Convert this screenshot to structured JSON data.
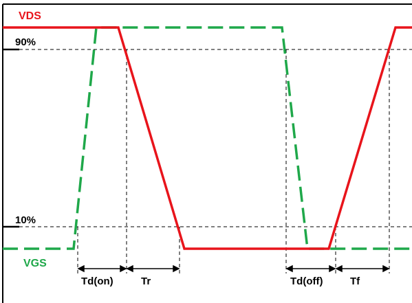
{
  "signals": {
    "vds": {
      "label": "VDS",
      "color": "#e8141b"
    },
    "vgs": {
      "label": "VGS",
      "color": "#1fa84a"
    }
  },
  "levels": {
    "high_pct": "90%",
    "low_pct": "10%"
  },
  "intervals": {
    "td_on": "Td(on)",
    "tr": "Tr",
    "td_off": "Td(off)",
    "tf": "Tf"
  },
  "colors": {
    "frame": "#000000",
    "guides": "#000000"
  }
}
